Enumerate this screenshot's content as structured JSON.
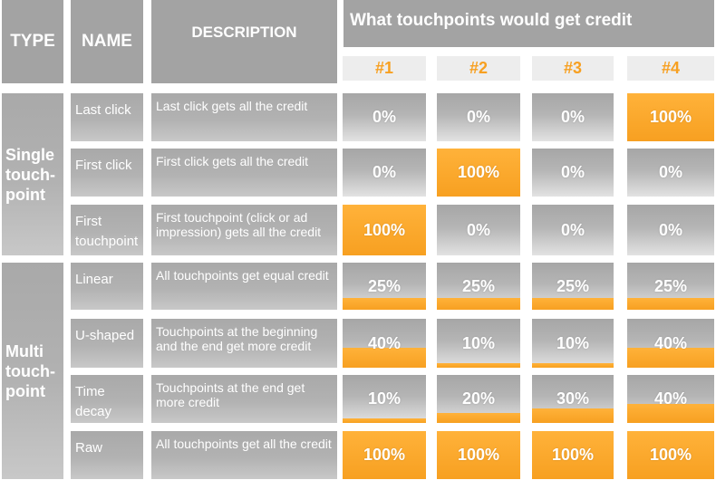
{
  "headers": {
    "type": "TYPE",
    "name": "NAME",
    "description": "DESCRIPTION",
    "banner": "What touchpoints would get credit",
    "touchpoints": [
      "#1",
      "#2",
      "#3",
      "#4"
    ]
  },
  "groups": [
    {
      "label": "Single touch-point",
      "lines": [
        "Single",
        "touch-",
        "point"
      ]
    },
    {
      "label": "Multi touch-point",
      "lines": [
        "Multi",
        "touch-",
        "point"
      ]
    }
  ],
  "colors": {
    "credit": "#f7a021",
    "cell": "#b0b0b0",
    "header": "#a3a3a3"
  },
  "chart_data": {
    "type": "table",
    "title": "What touchpoints would get credit",
    "columns": [
      "#1",
      "#2",
      "#3",
      "#4"
    ],
    "unit": "%",
    "rows": [
      {
        "type": "Single touch-point",
        "name": "Last click",
        "description": "Last click gets all the credit",
        "values": [
          0,
          0,
          0,
          100
        ],
        "labels": [
          "0%",
          "0%",
          "0%",
          "100%"
        ]
      },
      {
        "type": "Single touch-point",
        "name": "First click",
        "description": "First click gets all the credit",
        "values": [
          0,
          100,
          0,
          0
        ],
        "labels": [
          "0%",
          "100%",
          "0%",
          "0%"
        ]
      },
      {
        "type": "Single touch-point",
        "name": "First touchpoint",
        "description": "First touchpoint (click or ad impression) gets all the credit",
        "values": [
          100,
          0,
          0,
          0
        ],
        "labels": [
          "100%",
          "0%",
          "0%",
          "0%"
        ]
      },
      {
        "type": "Multi touch-point",
        "name": "Linear",
        "description": "All touchpoints get equal credit",
        "values": [
          25,
          25,
          25,
          25
        ],
        "labels": [
          "25%",
          "25%",
          "25%",
          "25%"
        ]
      },
      {
        "type": "Multi touch-point",
        "name": "U-shaped",
        "description": "Touchpoints at the beginning and the end get more credit",
        "values": [
          40,
          10,
          10,
          40
        ],
        "labels": [
          "40%",
          "10%",
          "10%",
          "40%"
        ]
      },
      {
        "type": "Multi touch-point",
        "name": "Time decay",
        "description": "Touchpoints at the end get more credit",
        "values": [
          10,
          20,
          30,
          40
        ],
        "labels": [
          "10%",
          "20%",
          "30%",
          "40%"
        ]
      },
      {
        "type": "Multi touch-point",
        "name": "Raw",
        "description": "All touchpoints get all the credit",
        "values": [
          100,
          100,
          100,
          100
        ],
        "labels": [
          "100%",
          "100%",
          "100%",
          "100%"
        ]
      }
    ]
  }
}
